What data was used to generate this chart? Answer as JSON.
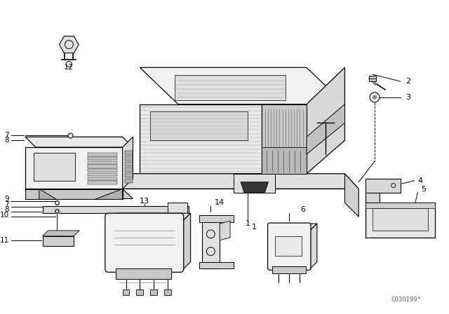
{
  "background_color": "#ffffff",
  "watermark": "C030199*",
  "line_color": "#000000",
  "light_gray": "#e8e8e8",
  "mid_gray": "#d0d0d0",
  "dark_gray": "#b0b0b0"
}
